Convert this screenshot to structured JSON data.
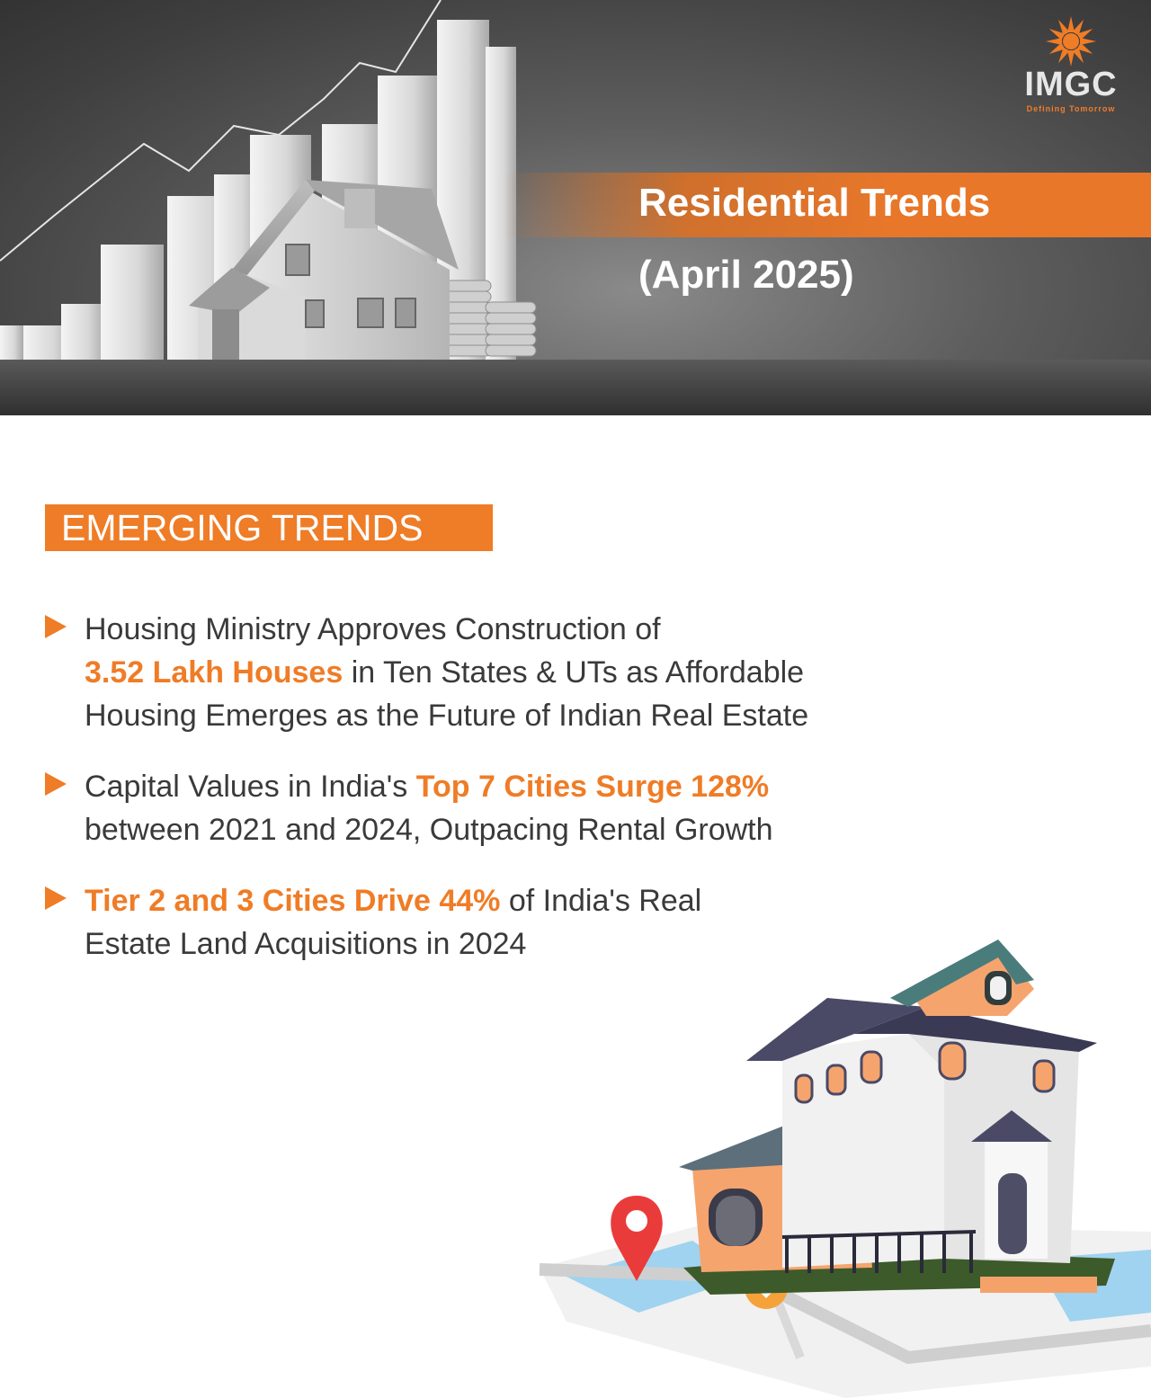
{
  "hero": {
    "title": "Residential Trends",
    "subtitle": "(April 2025)"
  },
  "brand": {
    "name": "IMGC",
    "tagline": "Defining Tomorrow",
    "logo_icon": "sunburst-logo-icon",
    "accent_color": "#ef7c26"
  },
  "section": {
    "title": "EMERGING TRENDS"
  },
  "trends": [
    {
      "line1": "Housing Ministry Approves Construction of",
      "highlight": "3.52 Lakh Houses",
      "line2_rest": " in Ten States & UTs as Affordable",
      "line3": "Housing Emerges as the Future of Indian Real Estate"
    },
    {
      "line1_pre": "Capital Values in India's ",
      "highlight": "Top 7 Cities Surge 128%",
      "line2": "between 2021 and 2024, Outpacing Rental Growth"
    },
    {
      "highlight": "Tier 2 and 3 Cities Drive 44%",
      "line1_rest": " of India's Real",
      "line2": "Estate Land Acquisitions in 2024"
    }
  ],
  "illustrations": {
    "hero_image": "house-and-bar-chart-illustration",
    "bottom_image": "house-on-map-illustration"
  }
}
